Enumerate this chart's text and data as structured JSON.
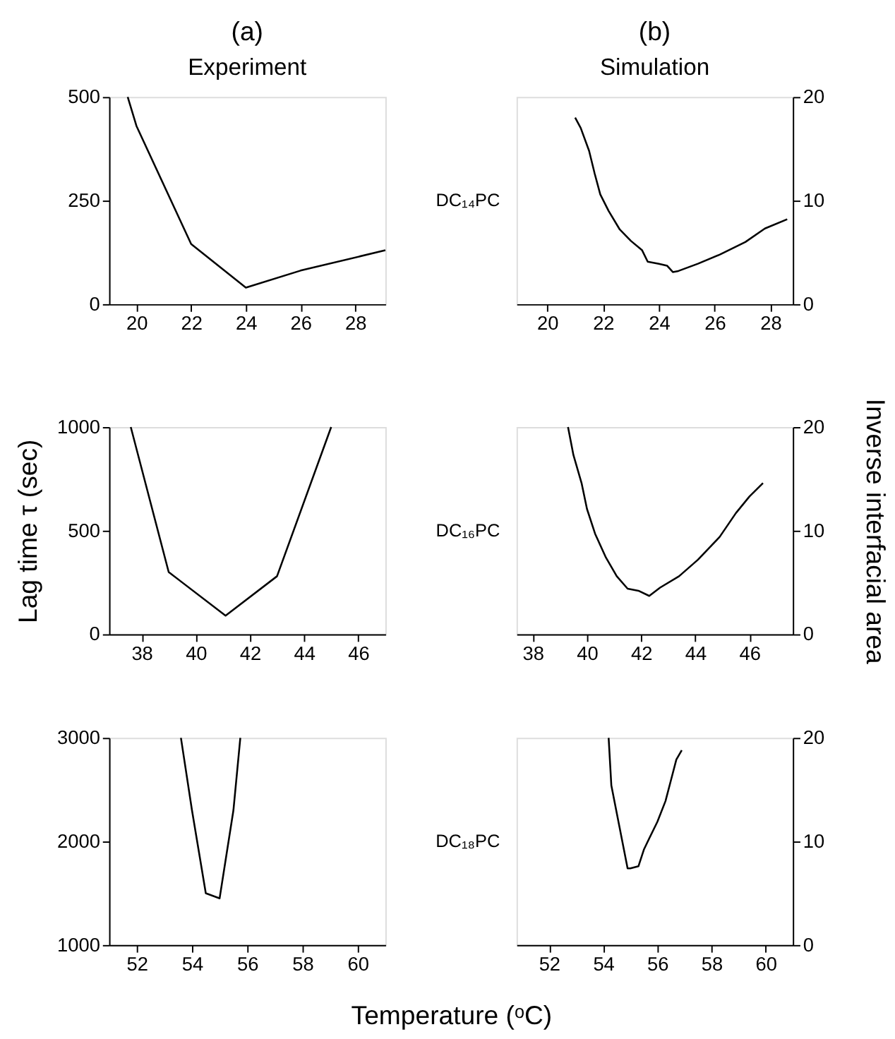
{
  "chart_data": [
    {
      "type": "line",
      "title": "(a)",
      "subtitle": "Experiment",
      "xlim": [
        19,
        29.1
      ],
      "xticks": [
        20,
        22,
        24,
        26,
        28
      ],
      "ylim": [
        0,
        500
      ],
      "yticks": [
        0,
        250,
        500
      ],
      "series": [
        {
          "color": "#000000",
          "x": [
            19.68,
            20,
            22,
            24,
            26,
            29.1
          ],
          "values": [
            500,
            430,
            145,
            40,
            81,
            130
          ]
        }
      ]
    },
    {
      "type": "line",
      "title": "(b)",
      "subtitle": "Simulation",
      "annotations": [
        "DC₁₄PC"
      ],
      "xlim": [
        18.9,
        28.8
      ],
      "xticks": [
        20,
        22,
        24,
        26,
        28
      ],
      "y2lim": [
        0,
        20
      ],
      "y2ticks": [
        0,
        10,
        20
      ],
      "series": [
        {
          "color": "#000000",
          "axis": "y2",
          "x": [
            21.0,
            21.2,
            21.5,
            21.7,
            21.9,
            22.2,
            22.6,
            23.0,
            23.4,
            23.6,
            24.0,
            24.3,
            24.5,
            24.7,
            25.4,
            26.2,
            27.1,
            27.8,
            28.6
          ],
          "values": [
            18.0,
            17.0,
            14.8,
            12.6,
            10.6,
            9.0,
            7.2,
            6.1,
            5.2,
            4.1,
            3.9,
            3.7,
            3.1,
            3.2,
            3.9,
            4.8,
            6.0,
            7.3,
            8.2
          ]
        }
      ]
    },
    {
      "type": "line",
      "ylabel": "Lag time τ (sec)",
      "xlim": [
        36.8,
        47
      ],
      "xticks": [
        38,
        40,
        42,
        44,
        46
      ],
      "ylim": [
        0,
        1000
      ],
      "yticks": [
        0,
        500,
        1000
      ],
      "series": [
        {
          "color": "#000000",
          "x": [
            37.6,
            39.0,
            41.1,
            43.0,
            45.0
          ],
          "values": [
            1000,
            300,
            90,
            280,
            1000
          ]
        }
      ]
    },
    {
      "type": "line",
      "y2label": "Inverse interfacial area",
      "annotations": [
        "DC₁₆PC"
      ],
      "xlim": [
        37.4,
        47.6
      ],
      "xticks": [
        38,
        40,
        42,
        44,
        46
      ],
      "y2lim": [
        0,
        20
      ],
      "y2ticks": [
        0,
        10,
        20
      ],
      "series": [
        {
          "color": "#000000",
          "axis": "y2",
          "x": [
            39.3,
            39.5,
            39.8,
            40.0,
            40.3,
            40.7,
            41.1,
            41.5,
            41.9,
            42.3,
            42.7,
            43.4,
            44.1,
            44.9,
            45.5,
            46.0,
            46.5
          ],
          "values": [
            20,
            17.3,
            14.6,
            12.1,
            9.7,
            7.4,
            5.6,
            4.4,
            4.2,
            3.7,
            4.5,
            5.6,
            7.2,
            9.4,
            11.7,
            13.3,
            14.6
          ]
        }
      ]
    },
    {
      "type": "line",
      "xlabel": "Temperature (ᵒC)",
      "xlim": [
        51,
        61
      ],
      "xticks": [
        52,
        54,
        56,
        58,
        60
      ],
      "ylim": [
        1000,
        3000
      ],
      "yticks": [
        1000,
        2000,
        3000
      ],
      "series": [
        {
          "color": "#000000",
          "x": [
            53.6,
            54.0,
            54.5,
            55.0,
            55.5,
            55.75
          ],
          "values": [
            3000,
            2300,
            1500,
            1450,
            2300,
            3000
          ]
        }
      ]
    },
    {
      "type": "line",
      "annotations": [
        "DC₁₈PC"
      ],
      "xlim": [
        50.8,
        61
      ],
      "xticks": [
        52,
        54,
        56,
        58,
        60
      ],
      "y2lim": [
        0,
        20
      ],
      "y2ticks": [
        0,
        10,
        20
      ],
      "series": [
        {
          "color": "#000000",
          "axis": "y2",
          "x": [
            54.2,
            54.3,
            54.6,
            54.9,
            55.0,
            55.3,
            55.5,
            55.7,
            56.0,
            56.3,
            56.5,
            56.7,
            56.9
          ],
          "values": [
            20,
            15.4,
            11.4,
            7.4,
            7.4,
            7.6,
            9.2,
            10.3,
            11.9,
            13.9,
            15.9,
            17.9,
            18.8
          ]
        }
      ]
    }
  ]
}
